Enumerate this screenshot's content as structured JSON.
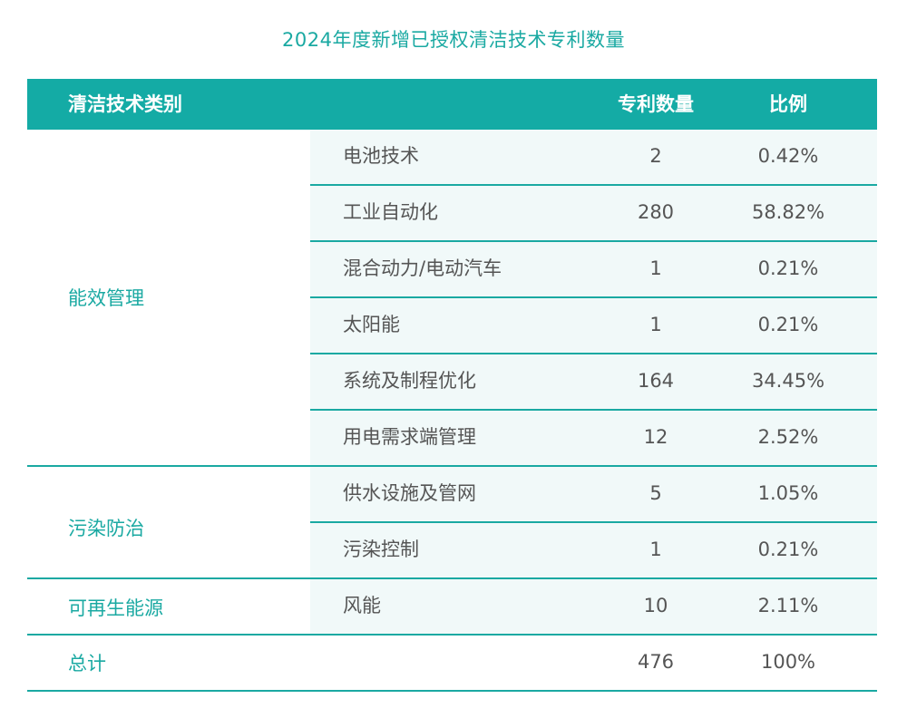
{
  "title": "2024年度新增已授权清洁技术专利数量",
  "header": {
    "category": "清洁技术类别",
    "count": "专利数量",
    "ratio": "比例"
  },
  "groups": [
    {
      "name": "能效管理",
      "rows": [
        {
          "sub": "电池技术",
          "count": "2",
          "ratio": "0.42%"
        },
        {
          "sub": "工业自动化",
          "count": "280",
          "ratio": "58.82%"
        },
        {
          "sub": "混合动力/电动汽车",
          "count": "1",
          "ratio": "0.21%"
        },
        {
          "sub": "太阳能",
          "count": "1",
          "ratio": "0.21%"
        },
        {
          "sub": "系统及制程优化",
          "count": "164",
          "ratio": "34.45%"
        },
        {
          "sub": "用电需求端管理",
          "count": "12",
          "ratio": "2.52%"
        }
      ]
    },
    {
      "name": "污染防治",
      "rows": [
        {
          "sub": "供水设施及管网",
          "count": "5",
          "ratio": "1.05%"
        },
        {
          "sub": "污染控制",
          "count": "1",
          "ratio": "0.21%"
        }
      ]
    },
    {
      "name": "可再生能源",
      "rows": [
        {
          "sub": "风能",
          "count": "10",
          "ratio": "2.11%"
        }
      ]
    }
  ],
  "total": {
    "label": "总计",
    "count": "476",
    "ratio": "100%"
  }
}
